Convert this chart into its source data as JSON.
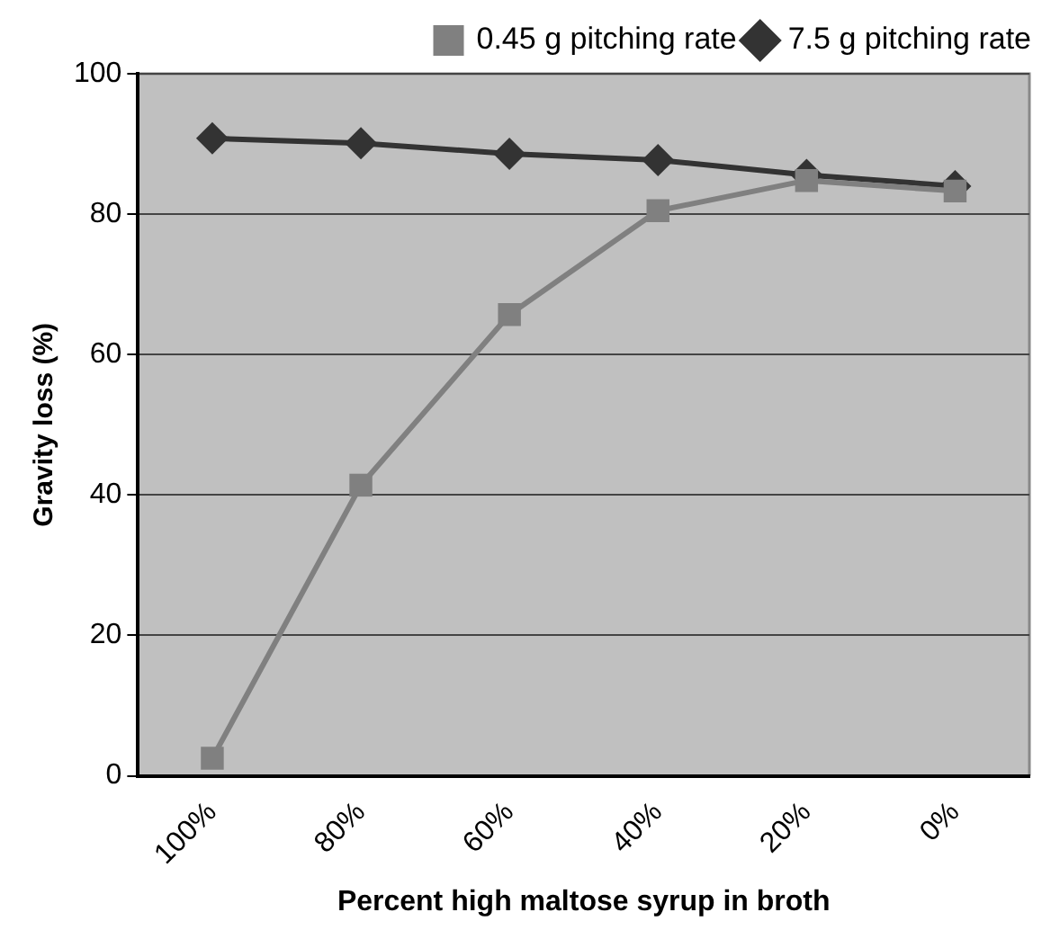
{
  "chart_data": {
    "type": "line",
    "xlabel": "Percent high maltose syrup in broth",
    "ylabel": "Gravity loss (%)",
    "categories": [
      "100%",
      "80%",
      "60%",
      "40%",
      "20%",
      "0%"
    ],
    "series": [
      {
        "name": "7.5 g pitching rate",
        "color": "#333333",
        "marker": "diamond",
        "values": [
          90.8,
          90.1,
          88.6,
          87.7,
          85.6,
          84.0
        ]
      },
      {
        "name": "0.45 g pitching rate",
        "color": "#808080",
        "marker": "square",
        "values": [
          2.5,
          41.4,
          65.7,
          80.5,
          84.8,
          83.3
        ]
      }
    ],
    "ylim": [
      0,
      100
    ],
    "yticks": [
      0,
      20,
      40,
      60,
      80,
      100
    ],
    "grid": "y",
    "legend": "top right",
    "line_style": "solid"
  }
}
